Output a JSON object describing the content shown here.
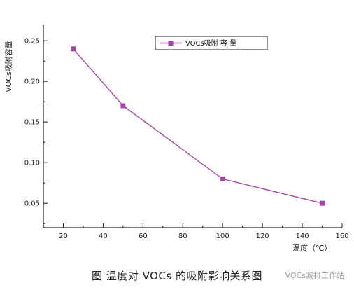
{
  "chart_data": {
    "type": "line",
    "x": [
      25,
      50,
      100,
      150
    ],
    "series": [
      {
        "name": "VOCs吸附 容 量",
        "values": [
          0.24,
          0.17,
          0.08,
          0.05
        ]
      }
    ],
    "xlabel": "温度（℃）",
    "ylabel": "VOCs吸附容量",
    "xlim": [
      10,
      160
    ],
    "ylim": [
      0.02,
      0.27
    ],
    "xticks": [
      20,
      40,
      60,
      80,
      100,
      120,
      140,
      160
    ],
    "yticks": [
      0.05,
      0.1,
      0.15,
      0.2,
      0.25
    ],
    "grid": false,
    "legend_position": "top-right",
    "series_color": "#a349a4",
    "caption": "图   温度对 VOCs 的吸附影响关系图",
    "watermark": "VOCs减排工作站"
  }
}
